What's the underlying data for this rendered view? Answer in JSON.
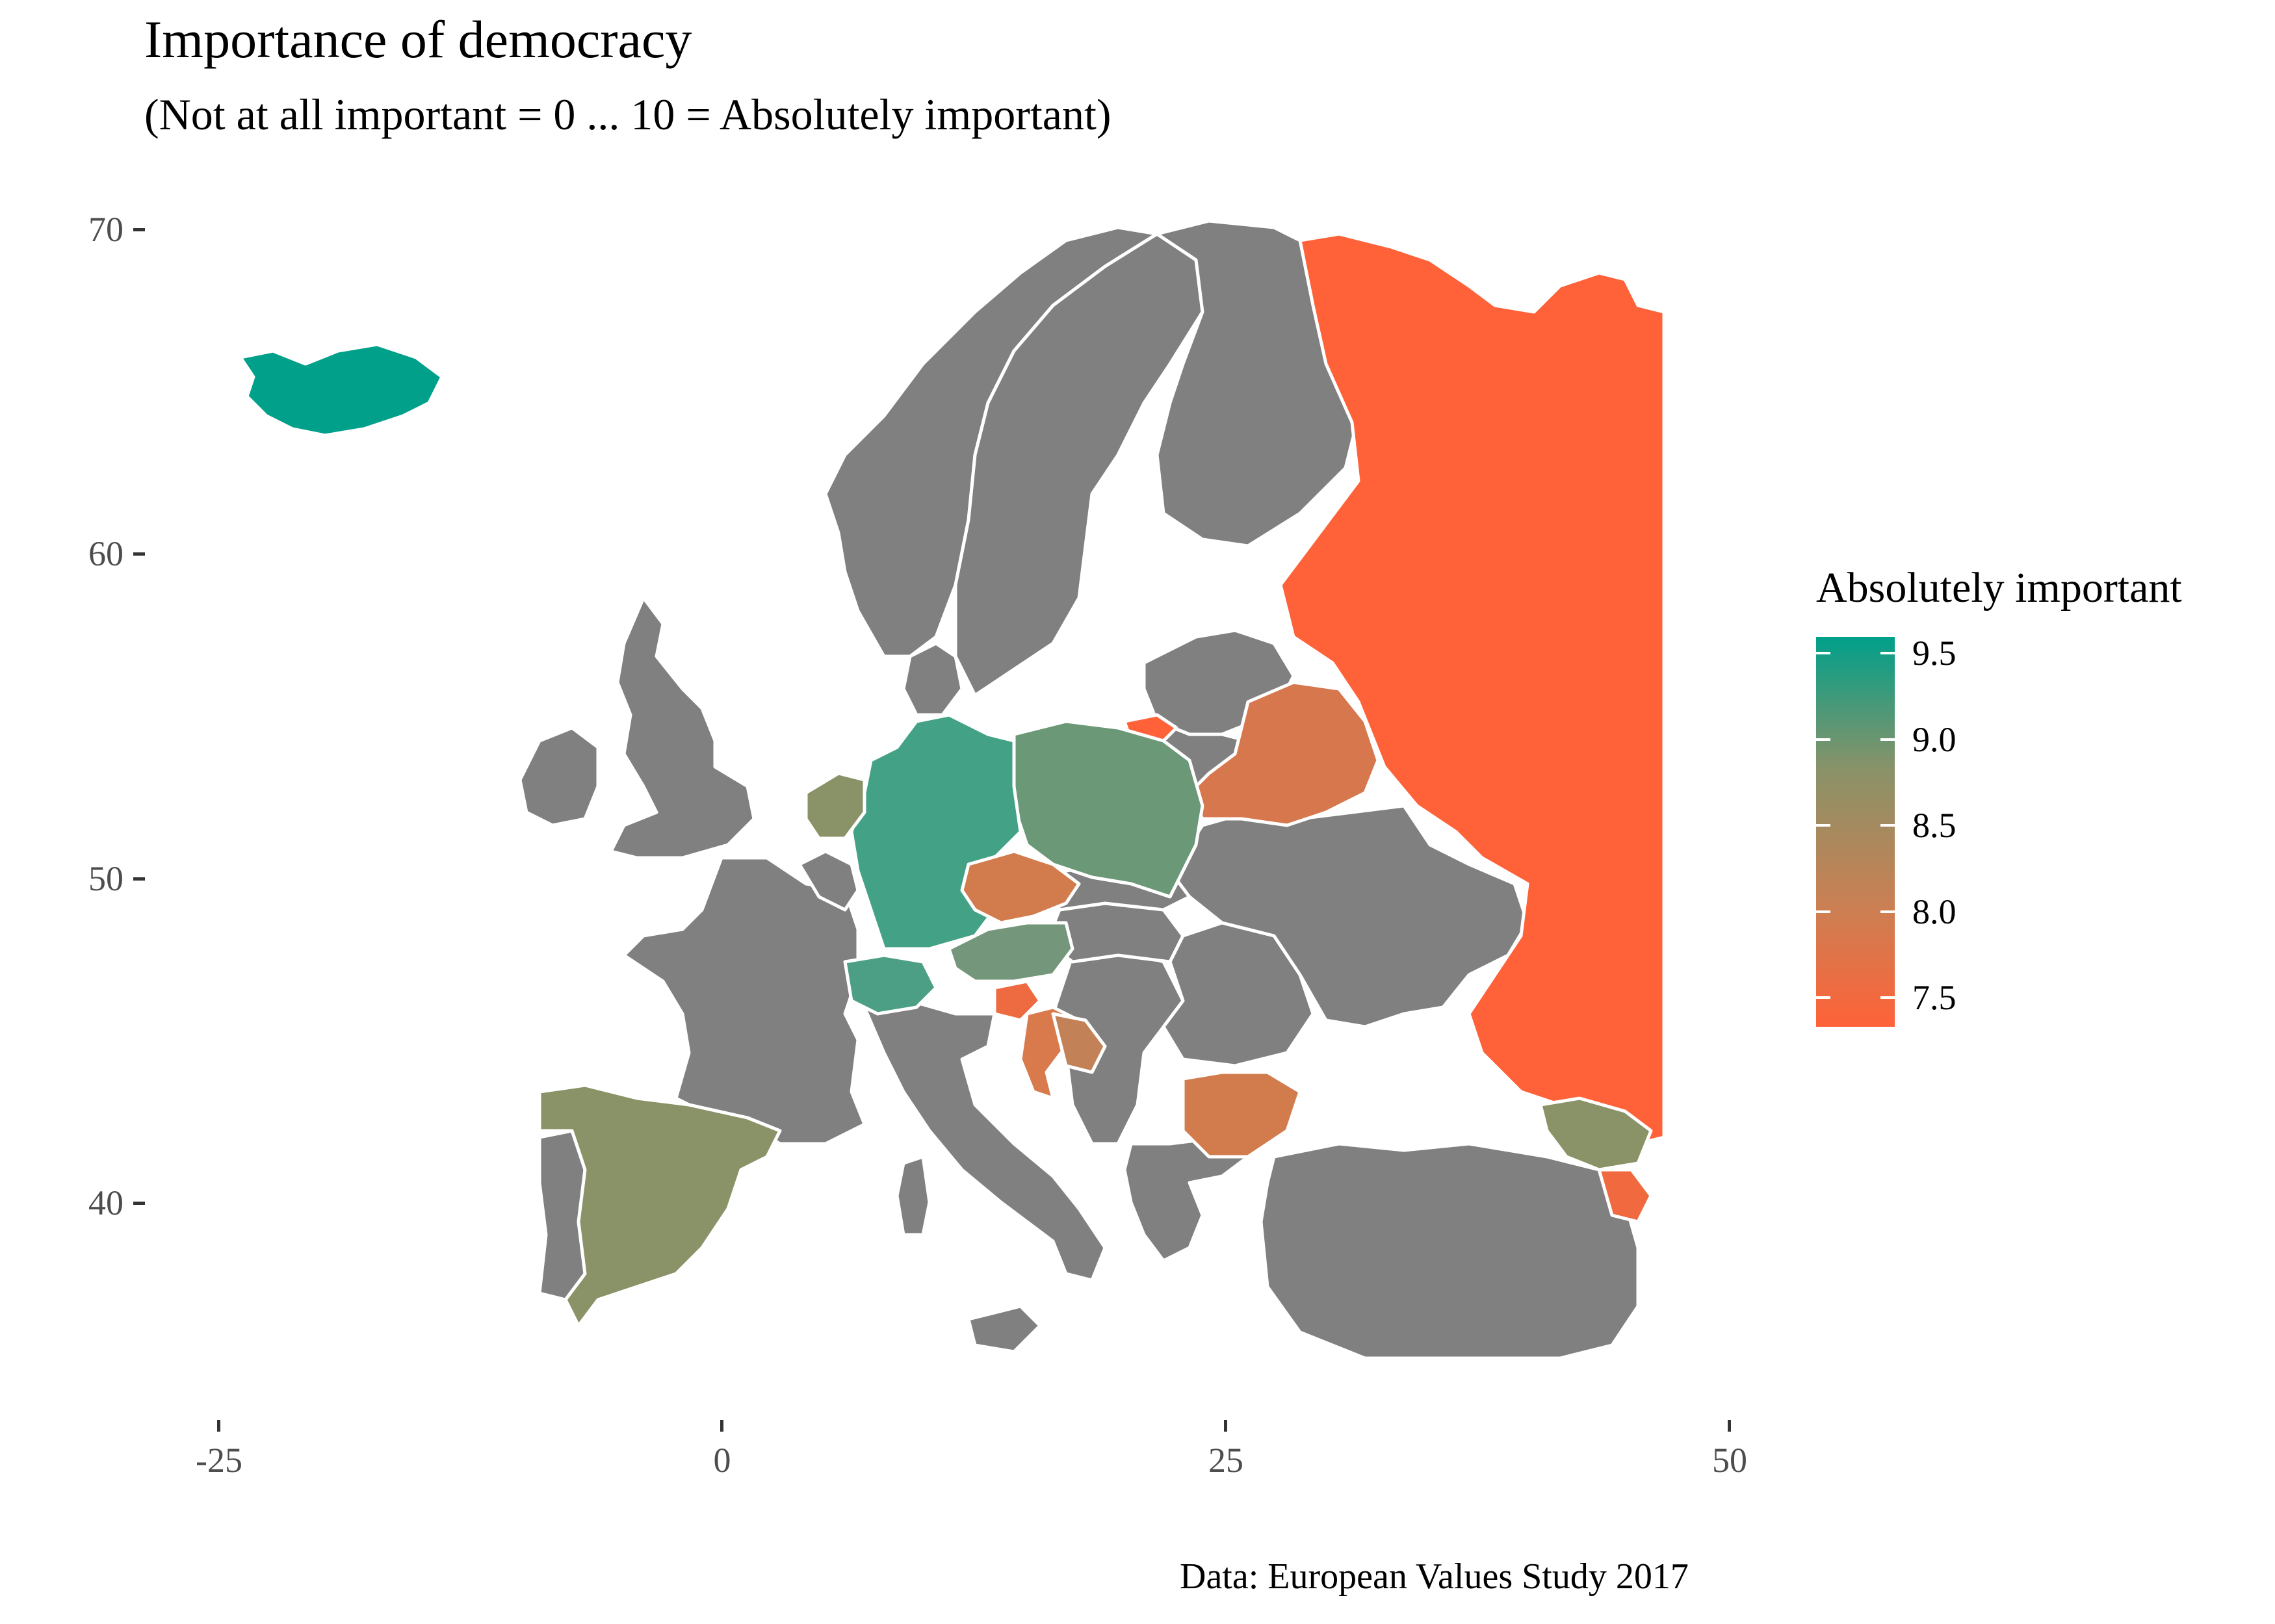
{
  "title": "Importance of democracy",
  "subtitle": "(Not at all important = 0 ... 10 = Absolutely important)",
  "caption": "Data: European Values Study 2017",
  "axes": {
    "x_ticks": [
      "-25",
      "0",
      "25",
      "50"
    ],
    "y_ticks": [
      "70",
      "60",
      "50",
      "40"
    ]
  },
  "legend": {
    "title": "Absolutely important",
    "labels": [
      "9.5",
      "9.0",
      "8.5",
      "8.0",
      "7.5"
    ],
    "color_high": "#00a08a",
    "color_low": "#ff6239"
  },
  "chart_data": {
    "type": "choropleth map",
    "fill_variable": "Absolutely important",
    "scale_range": [
      7.3,
      9.6
    ],
    "no_data_color": "#808080",
    "border_color": "#ffffff",
    "x_range": [
      -25,
      50
    ],
    "y_range": [
      35,
      70
    ],
    "regions_with_data": [
      {
        "id": "Iceland",
        "value": 9.6
      },
      {
        "id": "Germany",
        "value": 9.4
      },
      {
        "id": "Switzerland",
        "value": 9.3
      },
      {
        "id": "Poland",
        "value": 9.1
      },
      {
        "id": "Austria",
        "value": 9.1
      },
      {
        "id": "Spain",
        "value": 8.9
      },
      {
        "id": "Netherlands",
        "value": 8.8
      },
      {
        "id": "Georgia",
        "value": 8.8
      },
      {
        "id": "Bosnia and Herzegovina",
        "value": 8.3
      },
      {
        "id": "Croatia",
        "value": 8.1
      },
      {
        "id": "Bulgaria",
        "value": 8.0
      },
      {
        "id": "Czechia",
        "value": 7.9
      },
      {
        "id": "Belarus",
        "value": 7.8
      },
      {
        "id": "Slovenia",
        "value": 7.6
      },
      {
        "id": "Armenia",
        "value": 7.5
      },
      {
        "id": "Russia",
        "value": 7.3
      },
      {
        "id": "Kaliningrad",
        "value": 7.3
      }
    ]
  }
}
